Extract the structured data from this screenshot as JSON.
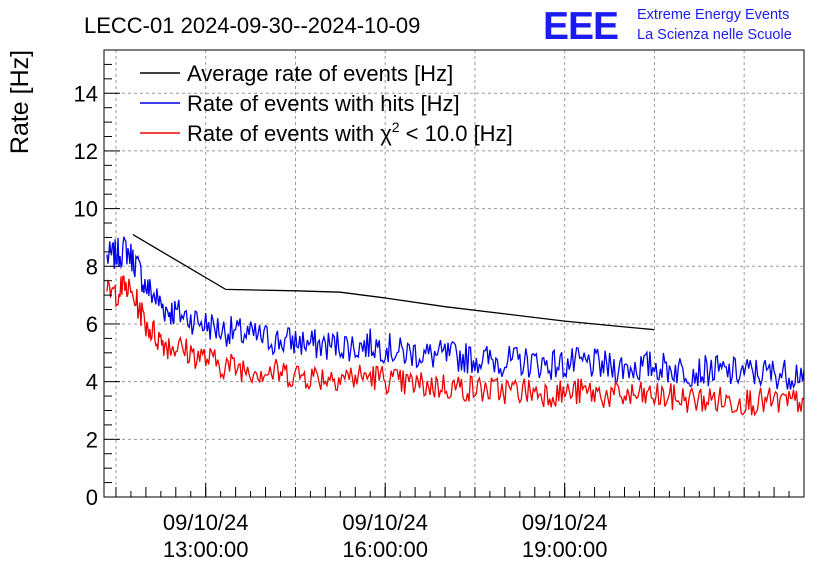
{
  "header": {
    "title": "LECC-01 2024-09-30--2024-10-09",
    "logo_text": "EEE",
    "logo_line1": "Extreme Energy Events",
    "logo_line2": "La Scienza nelle Scuole"
  },
  "colors": {
    "average": "#000000",
    "hits": "#0000ee",
    "chi2": "#ee0000",
    "logo": "#1c1cf2",
    "grid": "#9a9a9a"
  },
  "chart_data": {
    "type": "line",
    "title": "LECC-01 2024-09-30--2024-10-09",
    "xlabel": "",
    "ylabel": "Rate [Hz]",
    "ylim": [
      0,
      15.5
    ],
    "xlim_hours": [
      11.3,
      23.0
    ],
    "grid": true,
    "legend_position": "top-left",
    "x_ticks": [
      {
        "hour": 13,
        "line1": "09/10/24",
        "line2": "13:00:00"
      },
      {
        "hour": 16,
        "line1": "09/10/24",
        "line2": "16:00:00"
      },
      {
        "hour": 19,
        "line1": "09/10/24",
        "line2": "19:00:00"
      }
    ],
    "y_ticks": [
      0,
      2,
      4,
      6,
      8,
      10,
      12,
      14
    ],
    "legend": [
      {
        "key": "average",
        "prefix": "Average rate of events [Hz]",
        "sup": "",
        "suffix": ""
      },
      {
        "key": "hits",
        "prefix": "Rate of events with hits [Hz]",
        "sup": "",
        "suffix": ""
      },
      {
        "key": "chi2",
        "prefix": "Rate of events with χ",
        "sup": "2",
        "suffix": " < 10.0 [Hz]"
      }
    ],
    "series": [
      {
        "key": "average",
        "x_time": [
          "11:47",
          "13:20",
          "14:30",
          "15:15",
          "16:00",
          "17:00",
          "18:00",
          "19:00",
          "20:00",
          "20:30"
        ],
        "y": [
          9.1,
          7.2,
          7.15,
          7.1,
          6.9,
          6.6,
          6.35,
          6.1,
          5.9,
          5.8
        ]
      },
      {
        "key": "hits",
        "x_time": [
          "11:21",
          "11:30",
          "11:40",
          "11:50",
          "12:00",
          "12:10",
          "12:20",
          "12:30",
          "12:45",
          "13:00",
          "13:15",
          "13:30",
          "13:45",
          "14:00",
          "14:15",
          "14:30",
          "14:45",
          "15:00",
          "15:15",
          "15:30",
          "15:45",
          "16:00",
          "16:15",
          "16:30",
          "16:45",
          "17:00",
          "17:15",
          "17:30",
          "17:45",
          "18:00",
          "18:15",
          "18:30",
          "18:45",
          "19:00",
          "19:15",
          "19:30",
          "19:45",
          "20:00",
          "20:15",
          "20:30",
          "20:45",
          "21:00",
          "21:15",
          "21:30",
          "21:45",
          "22:00",
          "22:15",
          "22:30",
          "22:45",
          "23:00"
        ],
        "y": [
          8.3,
          8.4,
          8.6,
          8.1,
          7.3,
          6.9,
          6.5,
          6.4,
          6.2,
          6.0,
          5.8,
          5.7,
          5.6,
          5.5,
          5.4,
          5.4,
          5.3,
          5.25,
          5.3,
          5.2,
          5.3,
          5.2,
          5.0,
          5.0,
          4.9,
          4.9,
          4.85,
          4.8,
          4.75,
          4.7,
          4.7,
          4.65,
          4.6,
          4.6,
          4.65,
          4.6,
          4.5,
          4.5,
          4.5,
          4.55,
          4.45,
          4.4,
          4.35,
          4.4,
          4.3,
          4.35,
          4.3,
          4.3,
          4.25,
          4.4
        ]
      },
      {
        "key": "chi2",
        "x_time": [
          "11:21",
          "11:30",
          "11:40",
          "11:50",
          "12:00",
          "12:10",
          "12:20",
          "12:30",
          "12:45",
          "13:00",
          "13:15",
          "13:30",
          "13:45",
          "14:00",
          "14:15",
          "14:30",
          "14:45",
          "15:00",
          "15:15",
          "15:30",
          "15:45",
          "16:00",
          "16:15",
          "16:30",
          "16:45",
          "17:00",
          "17:15",
          "17:30",
          "17:45",
          "18:00",
          "18:15",
          "18:30",
          "18:45",
          "19:00",
          "19:15",
          "19:30",
          "19:45",
          "20:00",
          "20:15",
          "20:30",
          "20:45",
          "21:00",
          "21:15",
          "21:30",
          "21:45",
          "22:00",
          "22:15",
          "22:30",
          "22:45",
          "23:00"
        ],
        "y": [
          7.0,
          7.1,
          7.3,
          6.8,
          6.0,
          5.6,
          5.3,
          5.2,
          5.0,
          4.8,
          4.6,
          4.5,
          4.45,
          4.35,
          4.3,
          4.25,
          4.2,
          4.15,
          4.2,
          4.15,
          4.2,
          4.1,
          3.95,
          3.9,
          3.85,
          3.85,
          3.8,
          3.75,
          3.7,
          3.7,
          3.7,
          3.65,
          3.6,
          3.6,
          3.65,
          3.6,
          3.5,
          3.5,
          3.5,
          3.5,
          3.45,
          3.4,
          3.35,
          3.4,
          3.3,
          3.35,
          3.3,
          3.3,
          3.25,
          3.4
        ]
      }
    ]
  }
}
